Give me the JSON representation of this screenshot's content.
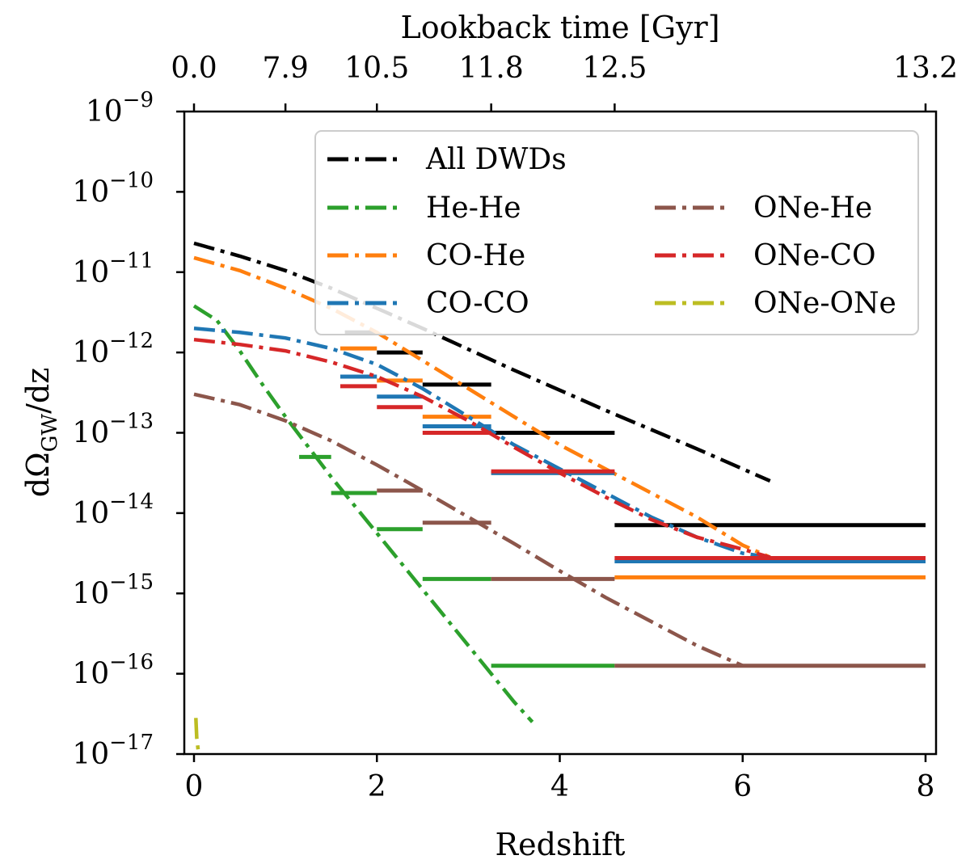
{
  "chart_data": {
    "type": "line",
    "xlabel": "Redshift",
    "ylabel_text": "dΩ",
    "ylabel_sub": "GW",
    "ylabel_tail": "/dz",
    "top_axis_label": "Lookback time [Gyr]",
    "yscale": "log",
    "xlim": [
      0,
      8
    ],
    "ylim_exp": [
      -17,
      -9
    ],
    "x_ticks": [
      0,
      2,
      4,
      6,
      8
    ],
    "x_tick_labels": [
      "0",
      "2",
      "4",
      "6",
      "8"
    ],
    "y_tick_exps": [
      -17,
      -16,
      -15,
      -14,
      -13,
      -12,
      -11,
      -10,
      -9
    ],
    "y_tick_base": "10",
    "y_tick_exp_labels": [
      "−17",
      "−16",
      "−15",
      "−14",
      "−13",
      "−12",
      "−11",
      "−10",
      "−9"
    ],
    "top_ticks_z": [
      0,
      1,
      2,
      3.25,
      4.6,
      8
    ],
    "top_tick_labels": [
      "0.0",
      "7.9",
      "10.5",
      "11.8",
      "12.5",
      "13.2"
    ],
    "legend_position": "top-right",
    "grid": false,
    "series": [
      {
        "name": "All DWDs",
        "color": "#000000",
        "curve": [
          [
            0,
            -10.64
          ],
          [
            0.5,
            -10.8
          ],
          [
            1,
            -10.98
          ],
          [
            1.5,
            -11.2
          ],
          [
            2,
            -11.45
          ],
          [
            2.5,
            -11.7
          ],
          [
            3,
            -11.96
          ],
          [
            3.5,
            -12.22
          ],
          [
            4,
            -12.47
          ],
          [
            4.5,
            -12.72
          ],
          [
            5,
            -12.96
          ],
          [
            5.5,
            -13.2
          ],
          [
            6,
            -13.45
          ],
          [
            6.3,
            -13.6
          ]
        ],
        "steps": [
          [
            1.65,
            2.0,
            -11.75
          ],
          [
            2.0,
            2.5,
            -12.0
          ],
          [
            2.5,
            3.25,
            -12.4
          ],
          [
            3.25,
            4.6,
            -13.0
          ],
          [
            4.6,
            8.0,
            -14.15
          ]
        ]
      },
      {
        "name": "He-He",
        "color": "#2ca02c",
        "curve": [
          [
            0,
            -11.42
          ],
          [
            0.25,
            -11.6
          ],
          [
            0.5,
            -11.98
          ],
          [
            0.75,
            -12.4
          ],
          [
            1,
            -12.8
          ],
          [
            1.5,
            -13.55
          ],
          [
            2,
            -14.25
          ],
          [
            2.5,
            -14.95
          ],
          [
            3,
            -15.65
          ],
          [
            3.5,
            -16.35
          ],
          [
            3.7,
            -16.6
          ]
        ],
        "steps": [
          [
            1.15,
            1.5,
            -13.3
          ],
          [
            1.5,
            2.0,
            -13.75
          ],
          [
            2.0,
            2.5,
            -14.2
          ],
          [
            2.5,
            3.25,
            -14.82
          ],
          [
            3.25,
            4.6,
            -15.9
          ]
        ]
      },
      {
        "name": "CO-He",
        "color": "#ff7f0e",
        "curve": [
          [
            0,
            -10.82
          ],
          [
            0.5,
            -10.98
          ],
          [
            1,
            -11.2
          ],
          [
            1.5,
            -11.45
          ],
          [
            2,
            -11.75
          ],
          [
            2.5,
            -12.1
          ],
          [
            3,
            -12.45
          ],
          [
            3.5,
            -12.8
          ],
          [
            4,
            -13.15
          ],
          [
            4.5,
            -13.45
          ],
          [
            5,
            -13.75
          ],
          [
            5.5,
            -14.05
          ],
          [
            6,
            -14.4
          ],
          [
            6.3,
            -14.55
          ]
        ],
        "steps": [
          [
            1.6,
            2.0,
            -11.95
          ],
          [
            2.0,
            2.5,
            -12.35
          ],
          [
            2.5,
            3.25,
            -12.8
          ],
          [
            3.25,
            4.6,
            -13.5
          ],
          [
            4.6,
            8.0,
            -14.8
          ]
        ]
      },
      {
        "name": "CO-CO",
        "color": "#1f77b4",
        "curve": [
          [
            0,
            -11.7
          ],
          [
            0.5,
            -11.75
          ],
          [
            1,
            -11.82
          ],
          [
            1.5,
            -11.95
          ],
          [
            2,
            -12.15
          ],
          [
            2.5,
            -12.45
          ],
          [
            3,
            -12.8
          ],
          [
            3.5,
            -13.15
          ],
          [
            4,
            -13.45
          ],
          [
            4.5,
            -13.75
          ],
          [
            5,
            -14.05
          ],
          [
            5.5,
            -14.3
          ],
          [
            6,
            -14.5
          ],
          [
            6.3,
            -14.55
          ]
        ],
        "steps": [
          [
            1.6,
            2.0,
            -12.3
          ],
          [
            2.0,
            2.5,
            -12.55
          ],
          [
            2.5,
            3.25,
            -12.92
          ],
          [
            3.25,
            4.6,
            -13.5
          ],
          [
            4.6,
            8.0,
            -14.6
          ]
        ]
      },
      {
        "name": "ONe-He",
        "color": "#8c564b",
        "curve": [
          [
            0,
            -12.52
          ],
          [
            0.5,
            -12.65
          ],
          [
            1,
            -12.85
          ],
          [
            1.5,
            -13.1
          ],
          [
            2,
            -13.4
          ],
          [
            2.5,
            -13.72
          ],
          [
            3,
            -14.05
          ],
          [
            3.5,
            -14.38
          ],
          [
            4,
            -14.72
          ],
          [
            4.5,
            -15.05
          ],
          [
            5,
            -15.35
          ],
          [
            5.5,
            -15.65
          ],
          [
            6,
            -15.9
          ],
          [
            6.3,
            -15.9
          ]
        ],
        "steps": [
          [
            2.0,
            2.5,
            -13.72
          ],
          [
            2.5,
            3.25,
            -14.12
          ],
          [
            3.25,
            4.6,
            -14.82
          ],
          [
            4.6,
            8.0,
            -15.9
          ]
        ]
      },
      {
        "name": "ONe-CO",
        "color": "#d62728",
        "curve": [
          [
            0,
            -11.84
          ],
          [
            0.5,
            -11.9
          ],
          [
            1,
            -11.98
          ],
          [
            1.5,
            -12.12
          ],
          [
            2,
            -12.3
          ],
          [
            2.5,
            -12.55
          ],
          [
            3,
            -12.85
          ],
          [
            3.5,
            -13.18
          ],
          [
            4,
            -13.5
          ],
          [
            4.5,
            -13.8
          ],
          [
            5,
            -14.08
          ],
          [
            5.5,
            -14.3
          ],
          [
            6,
            -14.45
          ],
          [
            6.3,
            -14.55
          ]
        ],
        "steps": [
          [
            1.6,
            2.0,
            -12.42
          ],
          [
            2.0,
            2.5,
            -12.68
          ],
          [
            2.5,
            3.25,
            -13.0
          ],
          [
            3.25,
            4.6,
            -13.48
          ],
          [
            4.6,
            8.0,
            -14.56
          ]
        ]
      },
      {
        "name": "ONe-ONe",
        "color": "#bcbd22",
        "curve": [
          [
            0.02,
            -16.55
          ],
          [
            0.03,
            -16.8
          ],
          [
            0.05,
            -17.0
          ]
        ],
        "steps": []
      }
    ]
  }
}
